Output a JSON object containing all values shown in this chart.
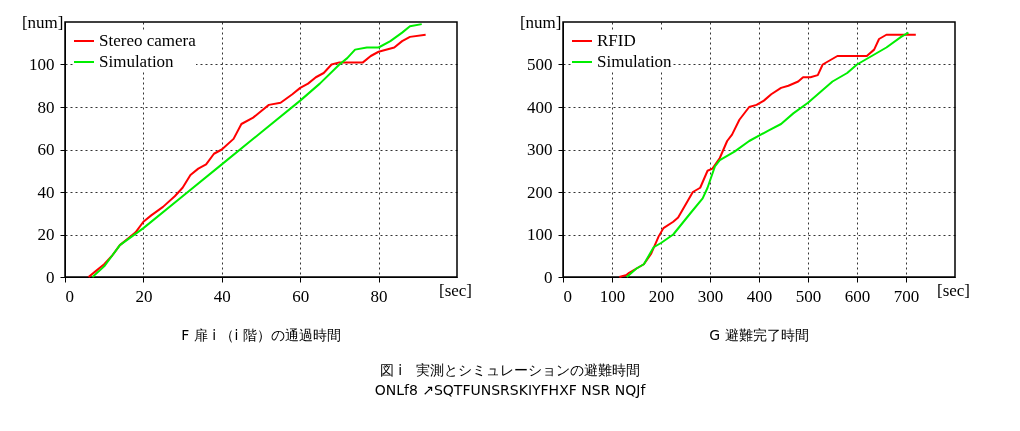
{
  "chart_data": [
    {
      "type": "line",
      "title": "F 扉 i （i 階）の通過時間",
      "xlabel": "[sec]",
      "ylabel": "[num]",
      "xlim": [
        0,
        100
      ],
      "xticks": [
        0,
        20,
        40,
        60,
        80
      ],
      "ylim": [
        0,
        120
      ],
      "yticks": [
        0,
        20,
        40,
        60,
        80,
        100
      ],
      "grid": true,
      "legend": "top left",
      "series": [
        {
          "name": "Stereo camera",
          "color": "#ff0000",
          "x": [
            6,
            8,
            10,
            12,
            14,
            16,
            18,
            20,
            22,
            25,
            28,
            30,
            32,
            34,
            36,
            38,
            40,
            43,
            45,
            48,
            50,
            52,
            55,
            58,
            60,
            62,
            64,
            66,
            68,
            70,
            72,
            76,
            78,
            80,
            84,
            86,
            88,
            92
          ],
          "values": [
            0,
            3,
            6,
            10,
            15,
            18,
            21,
            26,
            29,
            33,
            38,
            42,
            48,
            51,
            53,
            58,
            60,
            65,
            72,
            75,
            78,
            81,
            82,
            86,
            89,
            91,
            94,
            96,
            100,
            101,
            101,
            101,
            104,
            106,
            108,
            111,
            113,
            114
          ]
        },
        {
          "name": "Simulation",
          "color": "#00ee00",
          "x": [
            7,
            10,
            12,
            14,
            17,
            20,
            30,
            40,
            50,
            60,
            65,
            70,
            72,
            74,
            77,
            80,
            83,
            86,
            88,
            91
          ],
          "values": [
            0,
            5,
            10,
            15,
            19,
            23,
            38,
            53,
            68,
            83,
            91,
            100,
            103,
            107,
            108,
            108,
            111,
            115,
            118,
            119
          ]
        }
      ],
      "annotations": [
        "図 i　実測とシミュレーションの避難時間",
        "ONLf8 ↗SQTFUNSRSKIYFHXF NSR NQJf"
      ]
    },
    {
      "type": "line",
      "title": "G 避難完了時間",
      "xlabel": "[sec]",
      "ylabel": "[num]",
      "xlim": [
        0,
        800
      ],
      "xticks": [
        0,
        100,
        200,
        300,
        400,
        500,
        600,
        700
      ],
      "ylim": [
        0,
        600
      ],
      "yticks": [
        0,
        100,
        200,
        300,
        400,
        500
      ],
      "grid": true,
      "legend": "top left",
      "series": [
        {
          "name": "RFID",
          "color": "#ff0000",
          "x": [
            115,
            130,
            135,
            150,
            165,
            180,
            195,
            205,
            225,
            235,
            255,
            265,
            280,
            295,
            305,
            320,
            335,
            345,
            360,
            380,
            395,
            410,
            425,
            445,
            460,
            480,
            490,
            505,
            520,
            530,
            545,
            560,
            620,
            635,
            645,
            660,
            680,
            720
          ],
          "values": [
            0,
            5,
            10,
            20,
            30,
            55,
            95,
            115,
            130,
            140,
            180,
            200,
            210,
            250,
            255,
            280,
            320,
            335,
            370,
            400,
            405,
            415,
            430,
            445,
            450,
            460,
            470,
            470,
            475,
            500,
            510,
            520,
            520,
            535,
            560,
            570,
            570,
            570
          ]
        },
        {
          "name": "Simulation",
          "color": "#00ee00",
          "x": [
            130,
            150,
            165,
            185,
            200,
            225,
            260,
            285,
            295,
            310,
            320,
            350,
            380,
            420,
            445,
            470,
            500,
            530,
            550,
            580,
            600,
            630,
            660,
            690,
            705
          ],
          "values": [
            0,
            20,
            30,
            70,
            80,
            100,
            150,
            185,
            210,
            260,
            275,
            295,
            320,
            345,
            360,
            385,
            410,
            440,
            460,
            480,
            500,
            520,
            540,
            565,
            575
          ]
        }
      ]
    }
  ]
}
